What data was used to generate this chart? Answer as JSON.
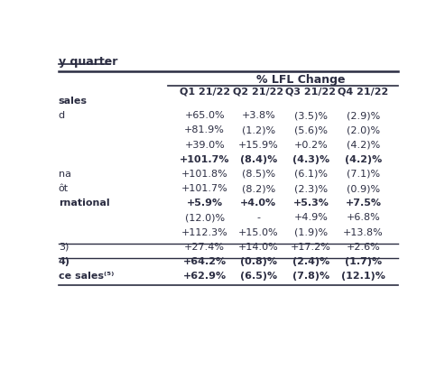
{
  "title": "y quarter",
  "header_lfl": "% LFL Change",
  "col_headers": [
    "Q1 21/22",
    "Q2 21/22",
    "Q3 21/22",
    "Q4 21/22"
  ],
  "row_labels": [
    "sales",
    "d",
    "",
    "",
    "",
    "na",
    "ôt",
    "rnational",
    "",
    "",
    "3)",
    "4)",
    "ce sales⁽⁵⁾"
  ],
  "row_label_bold": [
    true,
    false,
    false,
    false,
    false,
    false,
    false,
    true,
    false,
    false,
    false,
    true,
    true
  ],
  "values": [
    [
      "",
      "",
      "",
      ""
    ],
    [
      "+65.0%",
      "+3.8%",
      "(3.5)%",
      "(2.9)%"
    ],
    [
      "+81.9%",
      "(1.2)%",
      "(5.6)%",
      "(2.0)%"
    ],
    [
      "+39.0%",
      "+15.9%",
      "+0.2%",
      "(4.2)%"
    ],
    [
      "+101.7%",
      "(8.4)%",
      "(4.3)%",
      "(4.2)%"
    ],
    [
      "+101.8%",
      "(8.5)%",
      "(6.1)%",
      "(7.1)%"
    ],
    [
      "+101.7%",
      "(8.2)%",
      "(2.3)%",
      "(0.9)%"
    ],
    [
      "+5.9%",
      "+4.0%",
      "+5.3%",
      "+7.5%"
    ],
    [
      "(12.0)%",
      "-",
      "+4.9%",
      "+6.8%"
    ],
    [
      "+112.3%",
      "+15.0%",
      "(1.9)%",
      "+13.8%"
    ],
    [
      "+27.4%",
      "+14.0%",
      "+17.2%",
      "+2.6%"
    ],
    [
      "+64.2%",
      "(0.8)%",
      "(2.4)%",
      "(1.7)%"
    ],
    [
      "+62.9%",
      "(6.5)%",
      "(7.8)%",
      "(12.1)%"
    ]
  ],
  "values_bold": [
    false,
    false,
    false,
    false,
    true,
    false,
    false,
    true,
    false,
    false,
    false,
    true,
    true
  ],
  "sep_above": [
    false,
    false,
    false,
    false,
    false,
    false,
    false,
    false,
    false,
    false,
    false,
    true,
    true
  ],
  "background_color": "#ffffff",
  "text_color": "#2b2d42",
  "line_color": "#2b2d42"
}
